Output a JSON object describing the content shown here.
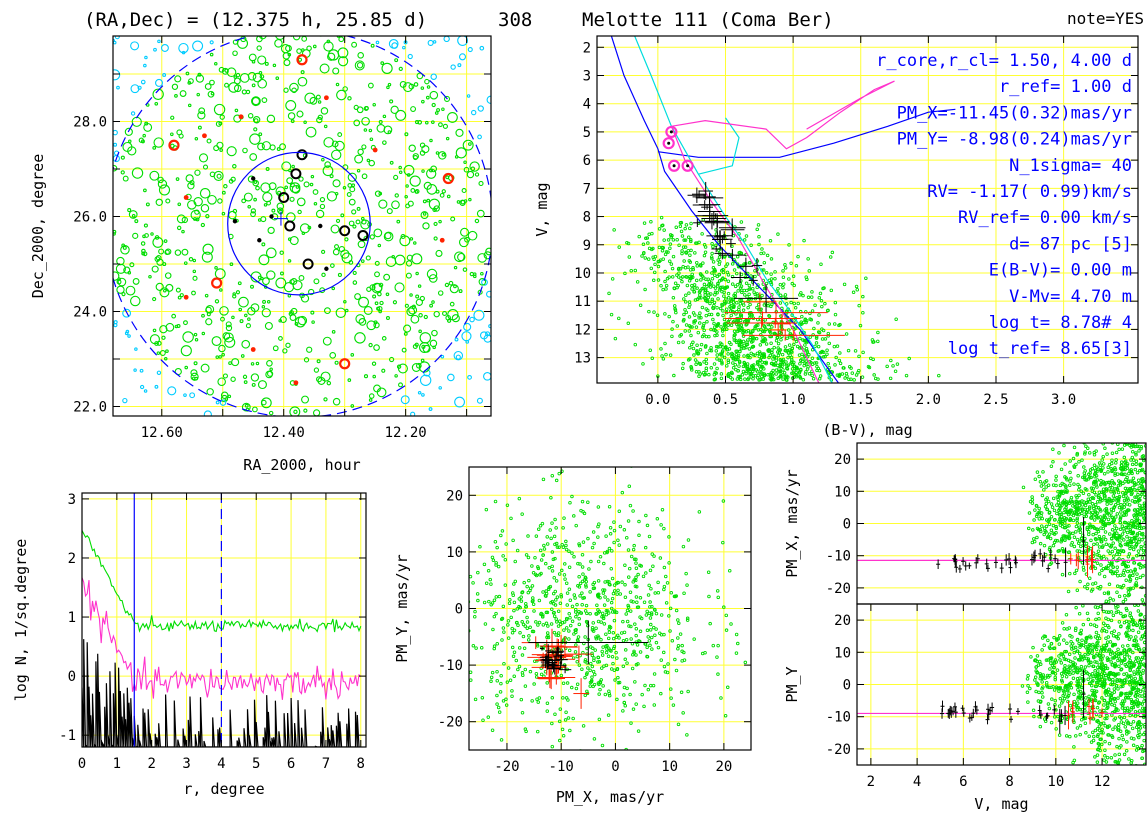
{
  "header": {
    "radec": "(RA,Dec) = (12.375 h, 25.85 d)",
    "number": "308",
    "cluster": "Melotte 111 (Coma Ber)",
    "note": "note=YES"
  },
  "colors": {
    "field_star": "#00ccff",
    "member": "#00dd00",
    "red": "#ff2200",
    "black": "#000000",
    "blue": "#0000ff",
    "magenta": "#ff33cc",
    "cyan": "#00dddd",
    "grid": "#ffff33"
  },
  "chart_data": [
    {
      "id": "sky",
      "type": "scatter",
      "xlabel": "RA_2000, hour",
      "ylabel": "Dec_2000, degree",
      "xlim": [
        12.68,
        12.06
      ],
      "ylim": [
        21.8,
        29.8
      ],
      "xticks": [
        12.6,
        12.5,
        12.4,
        12.3,
        12.2,
        12.1
      ],
      "xticklabels": [
        "12.60",
        "",
        "12.40",
        "",
        "12.20",
        ""
      ],
      "yticks": [
        22,
        23,
        24,
        25,
        26,
        27,
        28,
        29
      ],
      "yticklabels": [
        "22.0",
        "",
        "24.0",
        "",
        "26.0",
        "",
        "28.0",
        ""
      ],
      "center": [
        12.375,
        25.85
      ],
      "r_core_deg": 1.5,
      "r_cl_deg": 4.0,
      "members_black": [
        [
          12.37,
          27.3
        ],
        [
          12.45,
          26.8
        ],
        [
          12.4,
          26.4
        ],
        [
          12.42,
          26.0
        ],
        [
          12.39,
          25.8
        ],
        [
          12.34,
          25.8
        ],
        [
          12.3,
          25.7
        ],
        [
          12.44,
          25.5
        ],
        [
          12.36,
          25.0
        ],
        [
          12.33,
          24.9
        ],
        [
          12.38,
          26.9
        ],
        [
          12.48,
          25.9
        ],
        [
          12.27,
          25.6
        ]
      ],
      "members_red": [
        [
          12.37,
          29.3
        ],
        [
          12.33,
          28.5
        ],
        [
          12.47,
          28.1
        ],
        [
          12.58,
          27.5
        ],
        [
          12.53,
          27.7
        ],
        [
          12.25,
          27.4
        ],
        [
          12.13,
          26.8
        ],
        [
          12.56,
          26.4
        ],
        [
          12.14,
          25.5
        ],
        [
          12.51,
          24.6
        ],
        [
          12.56,
          24.3
        ],
        [
          12.45,
          23.2
        ],
        [
          12.3,
          22.9
        ],
        [
          12.38,
          22.5
        ]
      ]
    },
    {
      "id": "cmd",
      "type": "scatter",
      "xlabel": "(B-V), mag",
      "ylabel": "V, mag",
      "xlim": [
        -0.45,
        3.55
      ],
      "ylim": [
        13.9,
        1.6
      ],
      "xticks": [
        0,
        0.5,
        1.0,
        1.5,
        2.0,
        2.5,
        3.0
      ],
      "xticklabels": [
        "0.0",
        "0.5",
        "1.0",
        "1.5",
        "2.0",
        "2.5",
        "3.0"
      ],
      "yticks": [
        2,
        3,
        4,
        5,
        6,
        7,
        8,
        9,
        10,
        11,
        12,
        13
      ],
      "yticklabels": [
        "2",
        "3",
        "4",
        "5",
        "6",
        "7",
        "8",
        "9",
        "10",
        "11",
        "12",
        "13"
      ],
      "magenta_members": [
        [
          0.1,
          5.0
        ],
        [
          0.08,
          5.4
        ],
        [
          0.12,
          6.2
        ],
        [
          0.22,
          6.2
        ]
      ],
      "info": [
        "r_core,r_cl= 1.50, 4.00 d",
        "r_ref= 1.00 d",
        "PM_X=-11.45(0.32)mas/yr",
        "PM_Y= -8.98(0.24)mas/yr",
        "N_1sigma= 40",
        "RV= -1.17( 0.99)km/s",
        "RV_ref= 0.00 km/s",
        "d= 87 pc [5]",
        "E(B-V)= 0.00 m",
        "V-Mv= 4.70 m",
        "log t= 8.78# 4",
        "log t_ref= 8.65[3]"
      ]
    },
    {
      "id": "density",
      "type": "line",
      "xlabel": "r, degree",
      "ylabel": "log N, 1/sq.degree",
      "xlim": [
        0,
        8.15
      ],
      "ylim": [
        -1.2,
        3.1
      ],
      "xticks": [
        0,
        1,
        2,
        3,
        4,
        5,
        6,
        7,
        8
      ],
      "xticklabels": [
        "0",
        "1",
        "2",
        "3",
        "4",
        "5",
        "6",
        "7",
        "8"
      ],
      "yticks": [
        -1,
        0,
        1,
        2,
        3
      ],
      "yticklabels": [
        "-1",
        "0",
        "1",
        "2",
        "3"
      ],
      "r_core": 1.5,
      "r_cl": 4.0,
      "green_level": 0.85,
      "magenta_level": -0.1
    },
    {
      "id": "pm",
      "type": "scatter",
      "xlabel": "PM_X, mas/yr",
      "ylabel": "PM_Y, mas/yr",
      "xlim": [
        -27,
        25
      ],
      "ylim": [
        -25,
        25
      ],
      "xticks": [
        -20,
        -10,
        0,
        10,
        20
      ],
      "xticklabels": [
        "-20",
        "-10",
        "0",
        "10",
        "20"
      ],
      "yticks": [
        -20,
        -10,
        0,
        10,
        20
      ],
      "yticklabels": [
        "-20",
        "-10",
        "0",
        "10",
        "20"
      ],
      "center": [
        -11.45,
        -8.98
      ]
    },
    {
      "id": "pmx_v",
      "type": "scatter",
      "xlabel": "",
      "ylabel": "PM_X, mas/yr",
      "xlim": [
        1.4,
        13.9
      ],
      "ylim": [
        -25,
        25
      ],
      "yticks": [
        -20,
        -10,
        0,
        10,
        20
      ],
      "yticklabels": [
        "-20",
        "-10",
        "0",
        "10",
        "20"
      ],
      "line_value": -11.45
    },
    {
      "id": "pmy_v",
      "type": "scatter",
      "xlabel": "V, mag",
      "ylabel": "PM_Y",
      "xlim": [
        1.4,
        13.9
      ],
      "ylim": [
        -25,
        25
      ],
      "xticks": [
        2,
        4,
        6,
        8,
        10,
        12
      ],
      "xticklabels": [
        "2",
        "4",
        "6",
        "8",
        "10",
        "12"
      ],
      "yticks": [
        -20,
        -10,
        0,
        10,
        20
      ],
      "yticklabels": [
        "-20",
        "-10",
        "0",
        "10",
        "20"
      ],
      "line_value": -8.98
    }
  ]
}
